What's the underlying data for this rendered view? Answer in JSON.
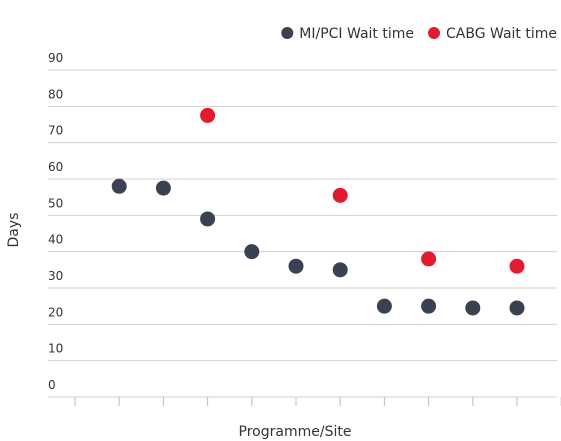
{
  "chart_data": {
    "type": "scatter",
    "x_label": "Programme/Site",
    "y_label": "Days",
    "categories": [
      null,
      null,
      null,
      null,
      null,
      null,
      null,
      null,
      null,
      null
    ],
    "series": [
      {
        "name": "MI/PCI Wait time",
        "color": "#3a4150",
        "values": [
          58,
          57.5,
          49,
          40,
          36,
          35,
          25,
          25,
          24.5,
          24.5
        ]
      },
      {
        "name": "CABG Wait time",
        "color": "#e31b2e",
        "values": [
          null,
          null,
          77.5,
          null,
          null,
          55.5,
          null,
          38,
          null,
          36
        ]
      }
    ],
    "ylim": [
      0,
      90
    ],
    "yticks": [
      0,
      10,
      20,
      30,
      40,
      50,
      60,
      70,
      80,
      90
    ],
    "grid": true,
    "legend": "top-right"
  }
}
